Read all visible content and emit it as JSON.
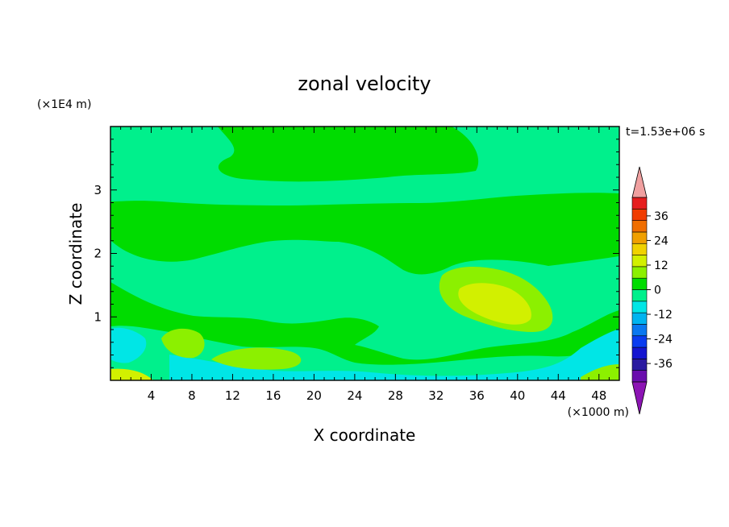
{
  "chart_data": {
    "type": "heatmap",
    "title": "zonal velocity",
    "xlabel": "X coordinate",
    "ylabel": "Z coordinate",
    "x_unit": "(×1000 m)",
    "y_unit": "(×1E4 m)",
    "time_label": "t=1.53e+06 s",
    "xlim": [
      0,
      50
    ],
    "ylim": [
      0,
      4
    ],
    "x_ticks": [
      4,
      8,
      12,
      16,
      20,
      24,
      28,
      32,
      36,
      40,
      44,
      48
    ],
    "y_ticks": [
      1,
      2,
      3
    ],
    "colorbar": {
      "levels": [
        -42,
        -36,
        -30,
        -24,
        -18,
        -12,
        -6,
        0,
        6,
        12,
        18,
        24,
        30,
        36,
        42
      ],
      "colors": [
        "#6a0dad",
        "#2a1aa0",
        "#1515d0",
        "#0a3cf0",
        "#0a78f0",
        "#00b4f0",
        "#00e6e6",
        "#00f08c",
        "#00dc00",
        "#8cf000",
        "#d2f000",
        "#f0d200",
        "#f0a000",
        "#f06e00",
        "#f03c00",
        "#e61e1e"
      ],
      "under_color": "#8c14b4",
      "over_color": "#f0a0a0",
      "tick_labels": [
        "36",
        "24",
        "12",
        "0",
        "-12",
        "-24",
        "-36"
      ]
    },
    "field_regions": [
      {
        "level": "0 to 6",
        "color": "#00f08c",
        "desc": "background"
      },
      {
        "level": "-6 to 0",
        "color": "#00e6e6"
      },
      {
        "level": "6 to 12",
        "color": "#00dc00"
      },
      {
        "level": "12 to 18",
        "color": "#8cf000"
      },
      {
        "level": "18 to 24",
        "color": "#d2f000"
      }
    ]
  }
}
